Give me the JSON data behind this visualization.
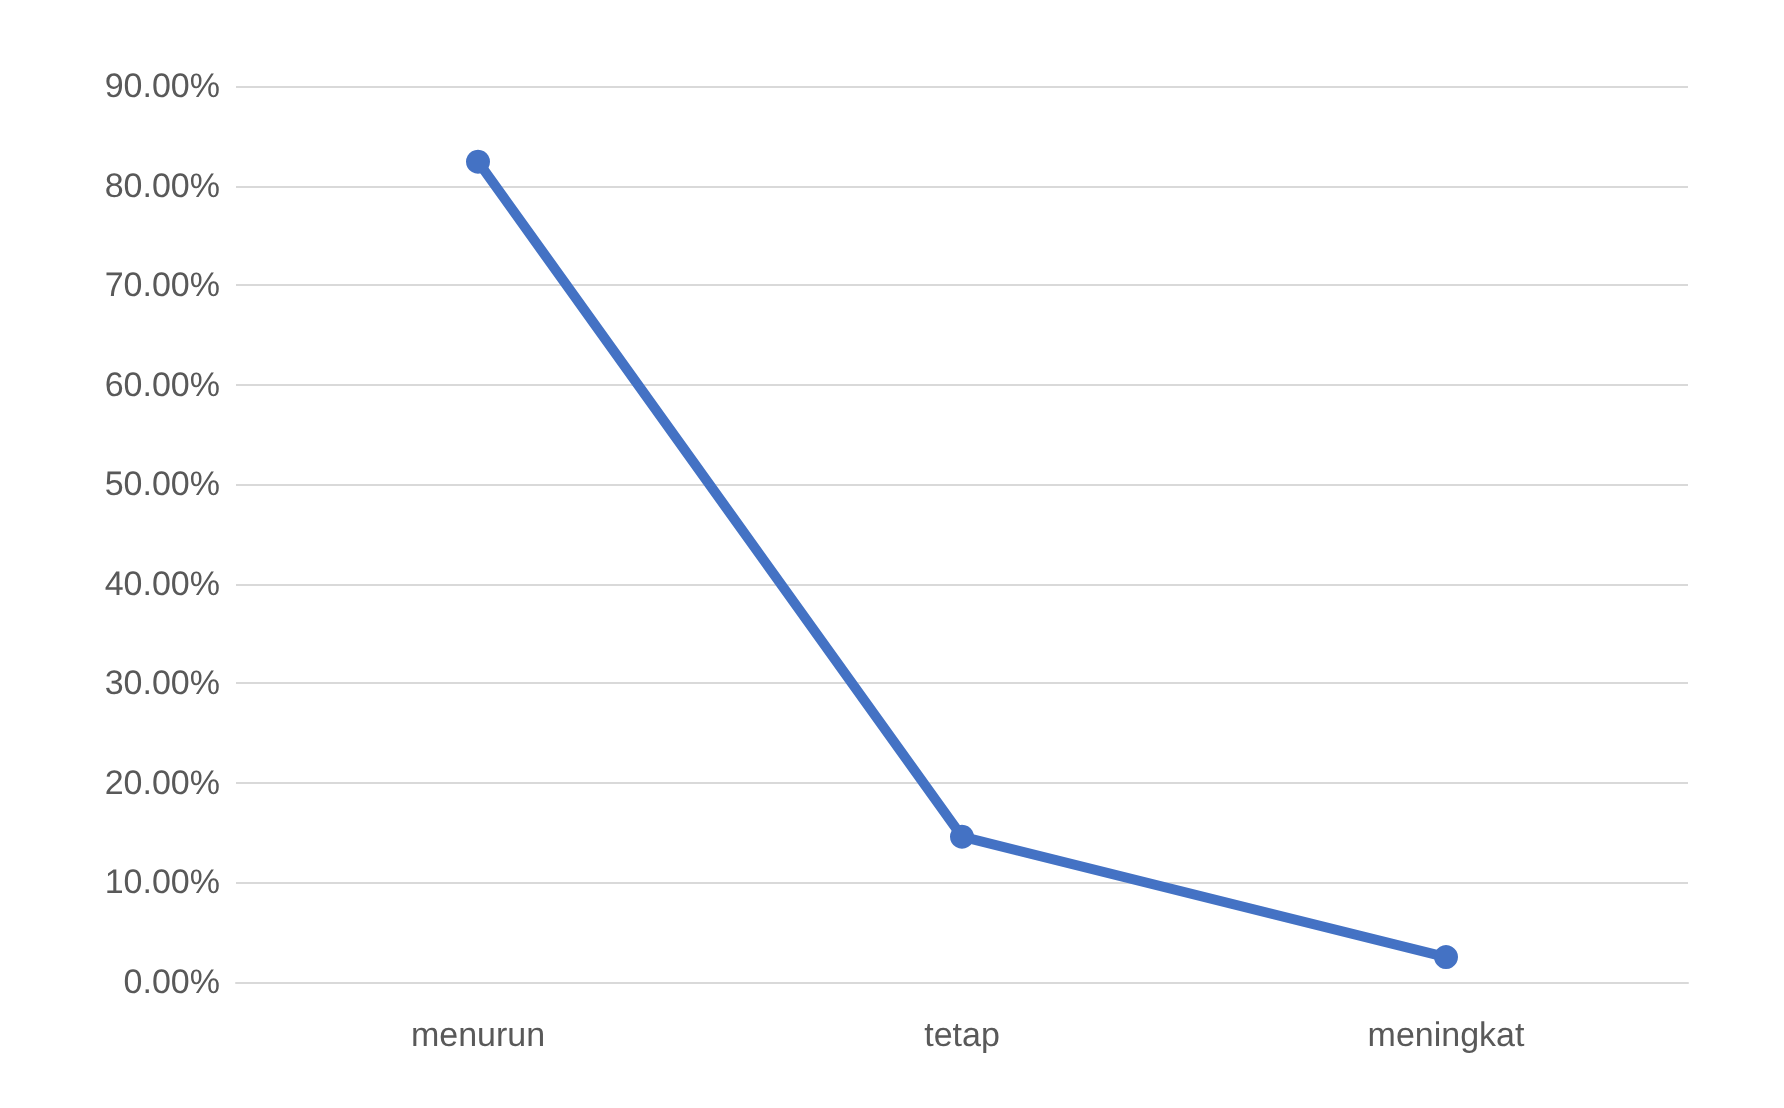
{
  "chart_data": {
    "type": "line",
    "categories": [
      "menurun",
      "tetap",
      "meningkat"
    ],
    "series": [
      {
        "color": "#4472c4",
        "values": [
          82.4,
          14.6,
          2.5
        ]
      }
    ],
    "ylim": [
      0,
      90
    ],
    "yticks": [
      {
        "value": 0,
        "label": "0.00%"
      },
      {
        "value": 10,
        "label": "10.00%"
      },
      {
        "value": 20,
        "label": "20.00%"
      },
      {
        "value": 30,
        "label": "30.00%"
      },
      {
        "value": 40,
        "label": "40.00%"
      },
      {
        "value": 50,
        "label": "50.00%"
      },
      {
        "value": 60,
        "label": "60.00%"
      },
      {
        "value": 70,
        "label": "70.00%"
      },
      {
        "value": 80,
        "label": "80.00%"
      },
      {
        "value": 90,
        "label": "90.00%"
      }
    ],
    "grid": "y",
    "marker": "circle",
    "line_style": "solid"
  }
}
